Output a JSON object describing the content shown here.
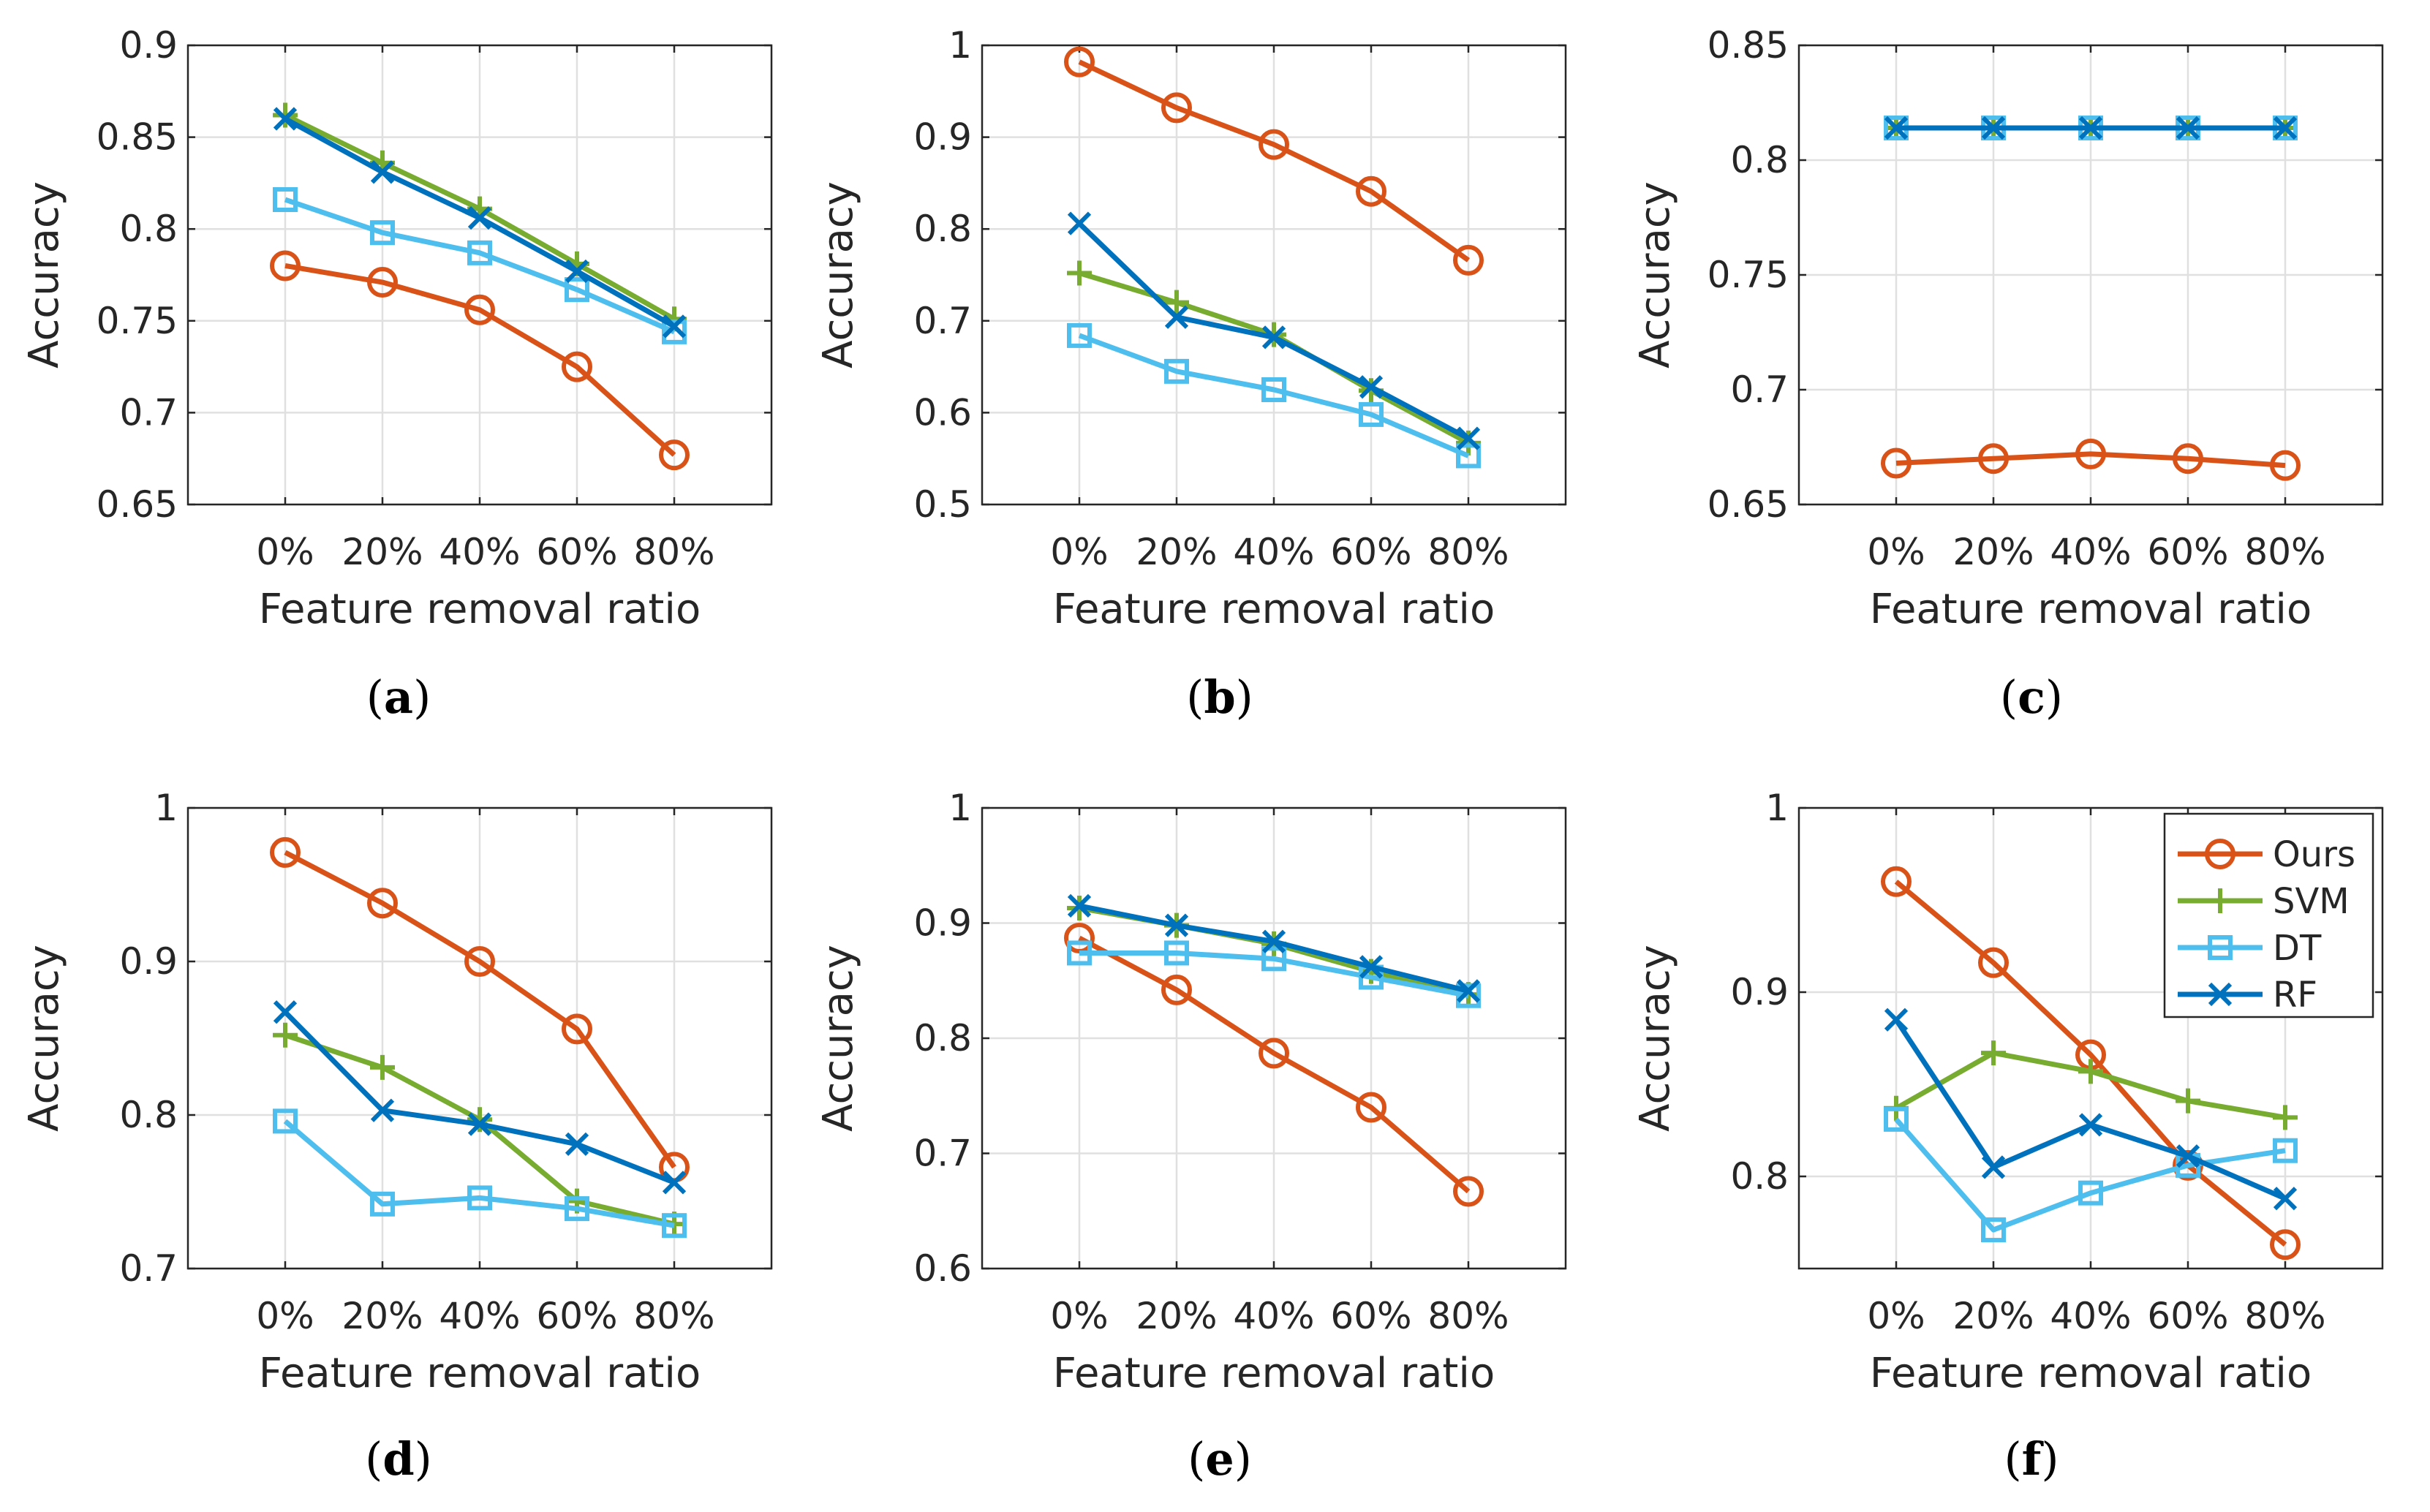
{
  "figure": {
    "series_colors": {
      "Ours": "#d95319",
      "SVM": "#77ac30",
      "DT": "#4dbeee",
      "RF": "#0072bd"
    },
    "series_markers": {
      "Ours": "circle-marker",
      "SVM": "plus-marker",
      "DT": "square-marker",
      "RF": "x-marker"
    },
    "legend": {
      "location": "top-right of panel (f)",
      "entries": [
        "Ours",
        "SVM",
        "DT",
        "RF"
      ]
    }
  },
  "chart_data": [
    {
      "panel": "a",
      "caption": {
        "open": "(",
        "letter": "a",
        "close": ")"
      },
      "type": "line",
      "xlabel": "Feature removal ratio",
      "ylabel": "Accuracy",
      "categories": [
        "0%",
        "20%",
        "40%",
        "60%",
        "80%"
      ],
      "ylim": [
        0.65,
        0.9
      ],
      "yticks": [
        0.65,
        0.7,
        0.75,
        0.8,
        0.85,
        0.9
      ],
      "ytick_labels": [
        "0.65",
        "0.7",
        "0.75",
        "0.8",
        "0.85",
        "0.9"
      ],
      "grid": true,
      "series": [
        {
          "name": "Ours",
          "values": [
            0.78,
            0.771,
            0.756,
            0.725,
            0.677
          ]
        },
        {
          "name": "SVM",
          "values": [
            0.862,
            0.836,
            0.811,
            0.781,
            0.751
          ]
        },
        {
          "name": "DT",
          "values": [
            0.816,
            0.798,
            0.787,
            0.767,
            0.744
          ]
        },
        {
          "name": "RF",
          "values": [
            0.86,
            0.831,
            0.806,
            0.777,
            0.747
          ]
        }
      ]
    },
    {
      "panel": "b",
      "caption": {
        "open": "(",
        "letter": "b",
        "close": ")"
      },
      "type": "line",
      "xlabel": "Feature removal ratio",
      "ylabel": "Accuracy",
      "categories": [
        "0%",
        "20%",
        "40%",
        "60%",
        "80%"
      ],
      "ylim": [
        0.5,
        1.0
      ],
      "yticks": [
        0.5,
        0.6,
        0.7,
        0.8,
        0.9,
        1.0
      ],
      "ytick_labels": [
        "0.5",
        "0.6",
        "0.7",
        "0.8",
        "0.9",
        "1"
      ],
      "grid": true,
      "series": [
        {
          "name": "Ours",
          "values": [
            0.982,
            0.932,
            0.892,
            0.841,
            0.766
          ]
        },
        {
          "name": "SVM",
          "values": [
            0.752,
            0.72,
            0.685,
            0.624,
            0.567
          ]
        },
        {
          "name": "DT",
          "values": [
            0.684,
            0.645,
            0.625,
            0.598,
            0.553
          ]
        },
        {
          "name": "RF",
          "values": [
            0.806,
            0.704,
            0.682,
            0.628,
            0.572
          ]
        }
      ]
    },
    {
      "panel": "c",
      "caption": {
        "open": "(",
        "letter": "c",
        "close": ")"
      },
      "type": "line",
      "xlabel": "Feature removal ratio",
      "ylabel": "Accuracy",
      "categories": [
        "0%",
        "20%",
        "40%",
        "60%",
        "80%"
      ],
      "ylim": [
        0.65,
        0.85
      ],
      "yticks": [
        0.65,
        0.7,
        0.75,
        0.8,
        0.85
      ],
      "ytick_labels": [
        "0.65",
        "0.7",
        "0.75",
        "0.8",
        "0.85"
      ],
      "grid": true,
      "series": [
        {
          "name": "Ours",
          "values": [
            0.668,
            0.67,
            0.672,
            0.67,
            0.667
          ]
        },
        {
          "name": "SVM",
          "values": [
            0.814,
            0.814,
            0.814,
            0.814,
            0.814
          ]
        },
        {
          "name": "DT",
          "values": [
            0.814,
            0.814,
            0.814,
            0.814,
            0.814
          ]
        },
        {
          "name": "RF",
          "values": [
            0.814,
            0.814,
            0.814,
            0.814,
            0.814
          ]
        }
      ]
    },
    {
      "panel": "d",
      "caption": {
        "open": "(",
        "letter": "d",
        "close": ")"
      },
      "type": "line",
      "xlabel": "Feature removal ratio",
      "ylabel": "Accuracy",
      "categories": [
        "0%",
        "20%",
        "40%",
        "60%",
        "80%"
      ],
      "ylim": [
        0.7,
        1.0
      ],
      "yticks": [
        0.7,
        0.8,
        0.9,
        1.0
      ],
      "ytick_labels": [
        "0.7",
        "0.8",
        "0.9",
        "1"
      ],
      "grid": true,
      "series": [
        {
          "name": "Ours",
          "values": [
            0.971,
            0.938,
            0.9,
            0.856,
            0.766
          ]
        },
        {
          "name": "SVM",
          "values": [
            0.852,
            0.831,
            0.797,
            0.744,
            0.729
          ]
        },
        {
          "name": "DT",
          "values": [
            0.796,
            0.742,
            0.746,
            0.739,
            0.728
          ]
        },
        {
          "name": "RF",
          "values": [
            0.867,
            0.803,
            0.794,
            0.781,
            0.756
          ]
        }
      ]
    },
    {
      "panel": "e",
      "caption": {
        "open": "(",
        "letter": "e",
        "close": ")"
      },
      "type": "line",
      "xlabel": "Feature removal ratio",
      "ylabel": "Accuracy",
      "categories": [
        "0%",
        "20%",
        "40%",
        "60%",
        "80%"
      ],
      "ylim": [
        0.6,
        1.0
      ],
      "yticks": [
        0.6,
        0.7,
        0.8,
        0.9,
        1.0
      ],
      "ytick_labels": [
        "0.6",
        "0.7",
        "0.8",
        "0.9",
        "1"
      ],
      "grid": true,
      "series": [
        {
          "name": "Ours",
          "values": [
            0.887,
            0.842,
            0.787,
            0.74,
            0.667
          ]
        },
        {
          "name": "SVM",
          "values": [
            0.913,
            0.898,
            0.882,
            0.858,
            0.838
          ]
        },
        {
          "name": "DT",
          "values": [
            0.874,
            0.874,
            0.869,
            0.853,
            0.837
          ]
        },
        {
          "name": "RF",
          "values": [
            0.915,
            0.898,
            0.884,
            0.862,
            0.841
          ]
        }
      ]
    },
    {
      "panel": "f",
      "caption": {
        "open": "(",
        "letter": "f",
        "close": ")"
      },
      "type": "line",
      "xlabel": "Feature removal ratio",
      "ylabel": "Accuracy",
      "categories": [
        "0%",
        "20%",
        "40%",
        "60%",
        "80%"
      ],
      "ylim": [
        0.75,
        1.0
      ],
      "yticks": [
        0.8,
        0.9,
        1.0
      ],
      "ytick_labels": [
        "0.8",
        "0.9",
        "1"
      ],
      "grid": true,
      "legend": [
        "Ours",
        "SVM",
        "DT",
        "RF"
      ],
      "series": [
        {
          "name": "Ours",
          "values": [
            0.96,
            0.916,
            0.866,
            0.806,
            0.763
          ]
        },
        {
          "name": "SVM",
          "values": [
            0.837,
            0.867,
            0.857,
            0.841,
            0.832
          ]
        },
        {
          "name": "DT",
          "values": [
            0.831,
            0.771,
            0.791,
            0.806,
            0.814
          ]
        },
        {
          "name": "RF",
          "values": [
            0.885,
            0.805,
            0.828,
            0.811,
            0.788
          ]
        }
      ]
    }
  ]
}
